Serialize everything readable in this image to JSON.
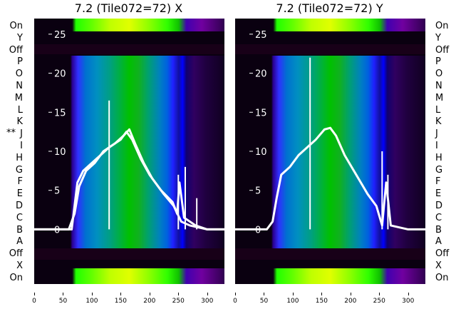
{
  "panels": [
    {
      "title": "7.2 (Tile072=72) X"
    },
    {
      "title": "7.2 (Tile072=72) Y"
    }
  ],
  "row_labels": [
    "On",
    "Y",
    "Off",
    "P",
    "O",
    "N",
    "M",
    "L",
    "K",
    "J",
    "I",
    "H",
    "G",
    "F",
    "E",
    "D",
    "C",
    "B",
    "A",
    "Off",
    "X",
    "On"
  ],
  "marker": "**",
  "y_ticks": [
    "25",
    "20",
    "15",
    "10",
    "5",
    "0"
  ],
  "x_ticks": [
    "0",
    "50",
    "100",
    "150",
    "200",
    "250",
    "300"
  ],
  "colors": {
    "background": "#0a0010",
    "trace": "#ffffff",
    "tick_text": "#ffffff"
  },
  "chart_data": [
    {
      "type": "heatmap",
      "title": "7.2 (Tile072=72) X",
      "xlim": [
        0,
        330
      ],
      "ylim": [
        -7,
        27
      ],
      "x_ticks": [
        0,
        50,
        100,
        150,
        200,
        250,
        300
      ],
      "y_ticks": [
        0,
        5,
        10,
        15,
        20,
        25
      ],
      "series": [
        {
          "x": [
            0,
            55,
            65,
            70,
            75,
            85,
            100,
            115,
            130,
            150,
            160,
            170,
            185,
            200,
            220,
            240,
            248,
            252,
            260,
            270,
            280,
            300,
            330
          ],
          "y": [
            0,
            0,
            0,
            3,
            6,
            7.5,
            8.5,
            9.5,
            10.5,
            11.5,
            12.5,
            11.5,
            9,
            7,
            5,
            3.5,
            2,
            6,
            1.5,
            1,
            0.5,
            0,
            0
          ]
        },
        {
          "x": [
            0,
            60,
            70,
            78,
            90,
            105,
            120,
            140,
            155,
            165,
            175,
            190,
            205,
            225,
            242,
            255,
            270,
            300,
            330
          ],
          "y": [
            0,
            0,
            2,
            5.5,
            7.5,
            8.5,
            10,
            11,
            12,
            12.8,
            11,
            8.5,
            6.5,
            4.5,
            3,
            1,
            0.5,
            0,
            0
          ]
        }
      ],
      "spikes": [
        {
          "x": 130,
          "y": 16.5
        },
        {
          "x": 250,
          "y": 7
        },
        {
          "x": 262,
          "y": 8
        },
        {
          "x": 282,
          "y": 4
        }
      ]
    },
    {
      "type": "heatmap",
      "title": "7.2 (Tile072=72) Y",
      "xlim": [
        0,
        330
      ],
      "ylim": [
        -7,
        27
      ],
      "x_ticks": [
        0,
        50,
        100,
        150,
        200,
        250,
        300
      ],
      "y_ticks": [
        0,
        5,
        10,
        15,
        20,
        25
      ],
      "series": [
        {
          "x": [
            0,
            55,
            65,
            72,
            80,
            95,
            110,
            125,
            140,
            155,
            165,
            175,
            190,
            210,
            230,
            245,
            255,
            262,
            270,
            300,
            330
          ],
          "y": [
            0,
            0,
            1,
            4,
            7,
            8,
            9.5,
            10.5,
            11.5,
            12.8,
            13,
            12,
            9.5,
            7,
            4.5,
            3,
            0.5,
            6,
            0.5,
            0,
            0
          ]
        }
      ],
      "spikes": [
        {
          "x": 130,
          "y": 22
        },
        {
          "x": 255,
          "y": 10
        },
        {
          "x": 265,
          "y": 7
        }
      ]
    }
  ]
}
